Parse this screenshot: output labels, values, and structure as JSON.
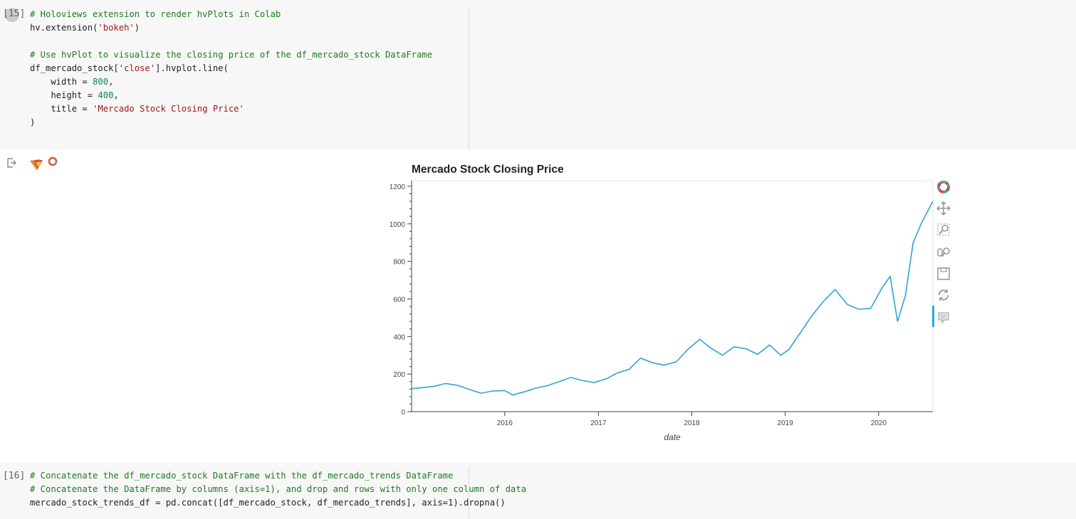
{
  "cell15": {
    "exec_count": "[15]",
    "code_lines": [
      "# Holoviews extension to render hvPlots in Colab",
      "hv.extension('bokeh')",
      "",
      "# Use hvPlot to visualize the closing price of the df_mercado_stock DataFrame",
      "df_mercado_stock['close'].hvplot.line(",
      "    width = 800,",
      "    height = 400,",
      "    title = 'Mercado Stock Closing Price'",
      ")"
    ]
  },
  "cell16": {
    "exec_count": "[16]",
    "code_lines": [
      "# Concatenate the df_mercado_stock DataFrame with the df_mercado_trends DataFrame",
      "# Concatenate the DataFrame by columns (axis=1), and drop and rows with only one column of data",
      "mercado_stock_trends_df = pd.concat([df_mercado_stock, df_mercado_trends], axis=1).dropna()"
    ]
  },
  "icons": [
    "output-icon",
    "holoviews-logo",
    "bokeh-logo-icon",
    "pan-icon",
    "box-zoom-icon",
    "wheel-zoom-icon",
    "save-icon",
    "reset-icon",
    "hover-icon"
  ],
  "colors": {
    "line": "#30a2da",
    "comment": "#1f7a1f",
    "string": "#a31515",
    "number": "#09885a"
  },
  "chart_data": {
    "type": "line",
    "title": "Mercado Stock Closing Price",
    "xlabel": "date",
    "ylabel": "",
    "ylim": [
      0,
      1230
    ],
    "xlim": [
      "2015-01-02",
      "2020-07-31"
    ],
    "x_ticks": [
      "2016",
      "2017",
      "2018",
      "2019",
      "2020"
    ],
    "y_ticks": [
      "0",
      "200",
      "400",
      "600",
      "800",
      "1000",
      "1200"
    ],
    "series": [
      {
        "x": [
          "2015-01-02",
          "2015-02-15",
          "2015-04-01",
          "2015-05-15",
          "2015-07-01",
          "2015-08-15",
          "2015-10-01",
          "2015-11-15",
          "2016-01-01",
          "2016-02-01",
          "2016-03-15",
          "2016-05-01",
          "2016-06-15",
          "2016-08-01",
          "2016-09-15",
          "2016-11-01",
          "2016-12-15",
          "2017-02-01",
          "2017-03-15",
          "2017-05-01",
          "2017-06-15",
          "2017-08-01",
          "2017-09-15",
          "2017-11-01",
          "2017-12-15",
          "2018-02-01",
          "2018-03-15",
          "2018-05-01",
          "2018-06-15",
          "2018-08-01",
          "2018-09-15",
          "2018-11-01",
          "2018-12-15",
          "2019-01-15",
          "2019-03-01",
          "2019-04-15",
          "2019-06-01",
          "2019-07-15",
          "2019-09-01",
          "2019-10-15",
          "2019-12-01",
          "2020-01-15",
          "2020-02-15",
          "2020-03-15",
          "2020-04-15",
          "2020-05-15",
          "2020-06-15",
          "2020-07-31"
        ],
        "values": [
          122,
          128,
          135,
          150,
          140,
          118,
          98,
          110,
          112,
          88,
          105,
          125,
          138,
          160,
          182,
          165,
          155,
          175,
          205,
          225,
          285,
          260,
          248,
          265,
          330,
          385,
          340,
          300,
          345,
          335,
          305,
          355,
          300,
          330,
          420,
          510,
          590,
          650,
          570,
          545,
          550,
          660,
          720,
          480,
          620,
          900,
          1000,
          1120
        ]
      }
    ]
  }
}
